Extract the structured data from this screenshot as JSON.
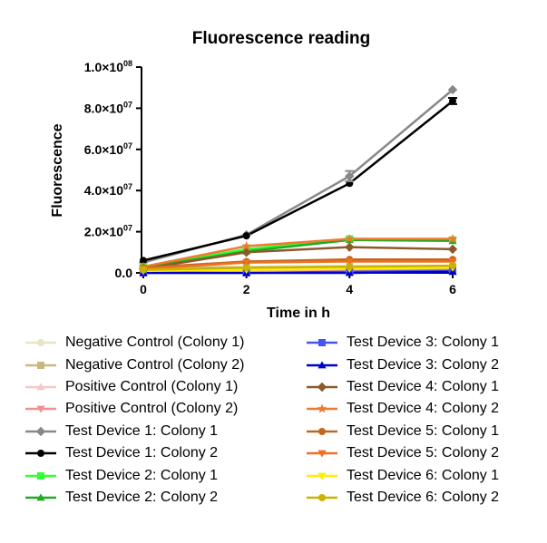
{
  "chart_data": {
    "type": "line",
    "title": "Fluorescence reading",
    "xlabel": "Time in h",
    "ylabel": "Fluorescence",
    "x": [
      0,
      2,
      4,
      6
    ],
    "xlim": [
      0,
      6
    ],
    "ylim": [
      0,
      100000000
    ],
    "x_ticks": [
      "0",
      "2",
      "4",
      "6"
    ],
    "y_tick_values": [
      0,
      20000000,
      40000000,
      60000000,
      80000000,
      100000000
    ],
    "y_ticks": [
      {
        "mant": "0.0",
        "exp": ""
      },
      {
        "mant": "2.0×10",
        "exp": "07"
      },
      {
        "mant": "4.0×10",
        "exp": "07"
      },
      {
        "mant": "6.0×10",
        "exp": "07"
      },
      {
        "mant": "8.0×10",
        "exp": "07"
      },
      {
        "mant": "1.0×10",
        "exp": "08"
      }
    ],
    "grid": false,
    "legend_position": "bottom",
    "series": [
      {
        "name": "Negative Control (Colony 1)",
        "color": "#e8e4c8",
        "marker": "circle",
        "values": [
          3000000,
          3000000,
          3500000,
          3500000
        ]
      },
      {
        "name": "Negative Control (Colony 2)",
        "color": "#c8b880",
        "marker": "square",
        "values": [
          2500000,
          2500000,
          3000000,
          3000000
        ]
      },
      {
        "name": "Positive Control (Colony 1)",
        "color": "#f5c8c8",
        "marker": "triangle-up",
        "values": [
          2000000,
          2000000,
          2000000,
          2000000
        ]
      },
      {
        "name": "Positive Control (Colony 2)",
        "color": "#f09090",
        "marker": "triangle-down",
        "values": [
          1500000,
          1500000,
          1500000,
          1500000
        ]
      },
      {
        "name": "Test Device 1: Colony 1",
        "color": "#888888",
        "marker": "diamond",
        "values": [
          5000000,
          18500000,
          47000000,
          89000000
        ]
      },
      {
        "name": "Test Device 1: Colony 2",
        "color": "#000000",
        "marker": "circle",
        "values": [
          6000000,
          18000000,
          43500000,
          83500000
        ]
      },
      {
        "name": "Test Device 2: Colony 1",
        "color": "#33ff33",
        "marker": "square",
        "values": [
          3000000,
          11500000,
          16500000,
          16000000
        ]
      },
      {
        "name": "Test Device 2: Colony 2",
        "color": "#22aa22",
        "marker": "triangle-up",
        "values": [
          2500000,
          10500000,
          16000000,
          15500000
        ]
      },
      {
        "name": "Test Device 3: Colony 1",
        "color": "#4455ee",
        "marker": "square",
        "values": [
          0,
          0,
          500000,
          1000000
        ]
      },
      {
        "name": "Test Device 3: Colony 2",
        "color": "#0000cc",
        "marker": "triangle-up",
        "values": [
          0,
          0,
          0,
          500000
        ]
      },
      {
        "name": "Test Device 4: Colony 1",
        "color": "#8b5a2b",
        "marker": "diamond",
        "values": [
          2000000,
          10000000,
          12500000,
          11500000
        ]
      },
      {
        "name": "Test Device 4: Colony 2",
        "color": "#f07830",
        "marker": "star",
        "values": [
          3000000,
          13000000,
          16500000,
          16500000
        ]
      },
      {
        "name": "Test Device 5: Colony 1",
        "color": "#c06820",
        "marker": "circle",
        "values": [
          2500000,
          5500000,
          6500000,
          6500000
        ]
      },
      {
        "name": "Test Device 5: Colony 2",
        "color": "#f07020",
        "marker": "triangle-down",
        "values": [
          2000000,
          5000000,
          5500000,
          5500000
        ]
      },
      {
        "name": "Test Device 6: Colony 1",
        "color": "#ffee00",
        "marker": "triangle-down",
        "values": [
          1000000,
          1500000,
          2000000,
          2500000
        ]
      },
      {
        "name": "Test Device 6: Colony 2",
        "color": "#c8b400",
        "marker": "circle",
        "values": [
          1500000,
          2500000,
          3000000,
          3500000
        ]
      }
    ],
    "error_bars": [
      {
        "series": "Test Device 1: Colony 1",
        "x": 4,
        "error": 2500000
      },
      {
        "series": "Test Device 1: Colony 2",
        "x": 6,
        "error": 1500000
      }
    ]
  }
}
